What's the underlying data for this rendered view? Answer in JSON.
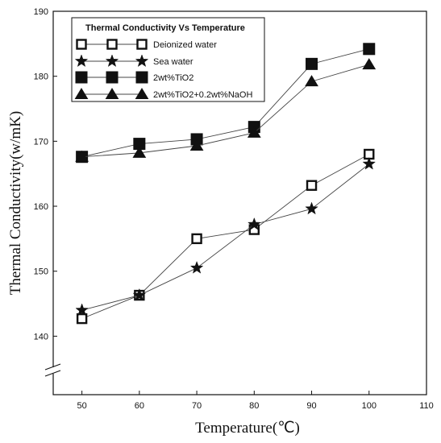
{
  "chart_data": {
    "type": "line",
    "legend_title": "Thermal Conductivity  Vs Temperature",
    "xlabel": "Temperature(℃)",
    "ylabel": "Thermal Conductivity(w/mK)",
    "xlim": [
      45,
      110
    ],
    "ylim": [
      131,
      190
    ],
    "x_ticks": [
      50,
      60,
      70,
      80,
      90,
      100,
      110
    ],
    "y_ticks": [
      140,
      150,
      160,
      170,
      180,
      190
    ],
    "legend_position": "top-left",
    "grid": false,
    "axis_break": "y",
    "series": [
      {
        "name": "Deionized water",
        "marker": "open-square",
        "x": [
          50,
          60,
          70,
          80,
          90,
          100
        ],
        "y": [
          142.7,
          146.3,
          155.0,
          156.4,
          163.2,
          168.0
        ]
      },
      {
        "name": "Sea water",
        "marker": "star",
        "x": [
          50,
          60,
          70,
          80,
          90,
          100
        ],
        "y": [
          144.0,
          146.3,
          150.5,
          157.2,
          159.6,
          166.5
        ]
      },
      {
        "name": "2wt%TiO2",
        "marker": "filled-square",
        "x": [
          50,
          60,
          70,
          80,
          90,
          100
        ],
        "y": [
          167.6,
          169.6,
          170.3,
          172.2,
          181.9,
          184.2
        ]
      },
      {
        "name": "2wt%TiO2+0.2wt%NaOH",
        "marker": "filled-triangle",
        "x": [
          50,
          60,
          70,
          80,
          90,
          100
        ],
        "y": [
          167.6,
          168.2,
          169.3,
          171.3,
          179.2,
          181.8
        ]
      }
    ]
  }
}
